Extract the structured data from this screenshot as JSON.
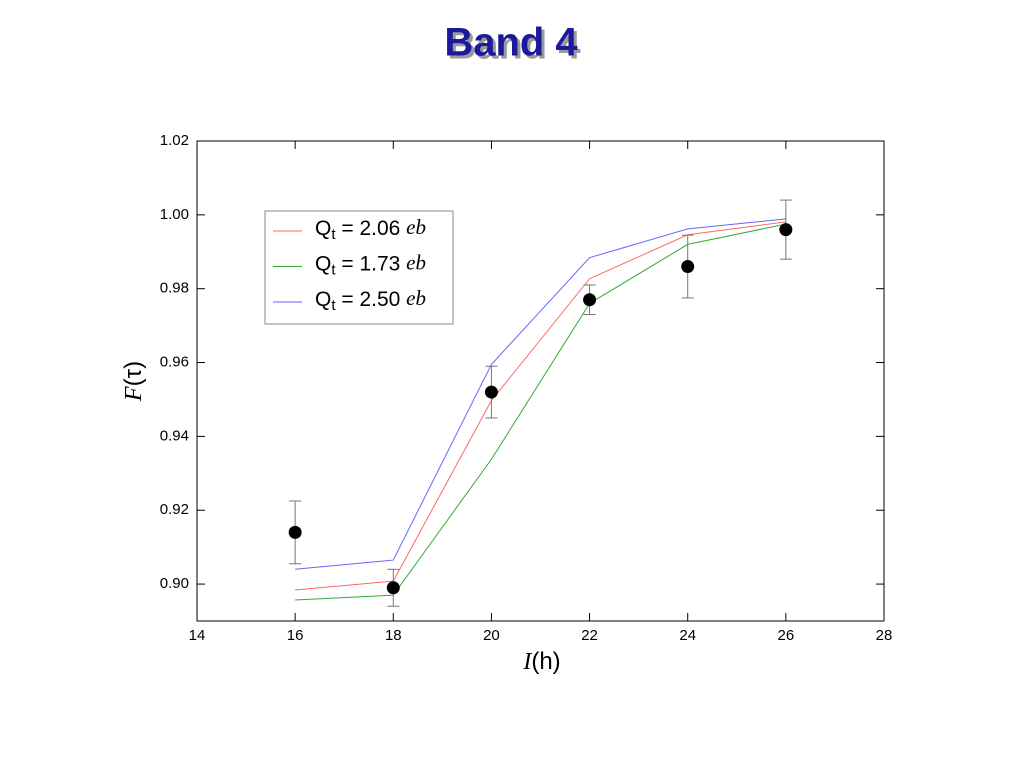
{
  "chart_data": {
    "type": "errorbar",
    "title": "Band 4",
    "x_label": "I(h)",
    "y_label": "F(τ)",
    "xlim": [
      14,
      28
    ],
    "xticks": [
      14,
      16,
      18,
      20,
      22,
      24,
      26,
      28
    ],
    "ylim": [
      0.89,
      1.02
    ],
    "yticks": [
      {
        "value": 0.9,
        "label": "0.90"
      },
      0.92,
      0.94,
      0.96,
      0.98,
      {
        "value": 1.0,
        "label": "1.00"
      },
      1.02
    ],
    "x": [
      16,
      18,
      20,
      22,
      24,
      26
    ],
    "values": [
      0.914,
      0.899,
      0.952,
      0.977,
      0.986,
      0.996
    ],
    "errors": [
      0.0085,
      0.005,
      0.007,
      0.004,
      0.0085,
      0.008
    ],
    "color": "#000000",
    "series": [
      {
        "name": "Qt = 2.06 eb",
        "color": "#ff6666",
        "values": [
          0.8984,
          0.9008,
          0.9497,
          0.9827,
          0.9946,
          0.9981
        ]
      },
      {
        "name": "Qt = 1.73 eb",
        "color": "#33aa33",
        "values": [
          0.8957,
          0.897,
          0.9338,
          0.976,
          0.992,
          0.9975
        ]
      },
      {
        "name": "Qt = 2.50 eb",
        "color": "#6666ff",
        "values": [
          0.904,
          0.9065,
          0.9595,
          0.9884,
          0.9962,
          0.9989
        ]
      }
    ]
  }
}
